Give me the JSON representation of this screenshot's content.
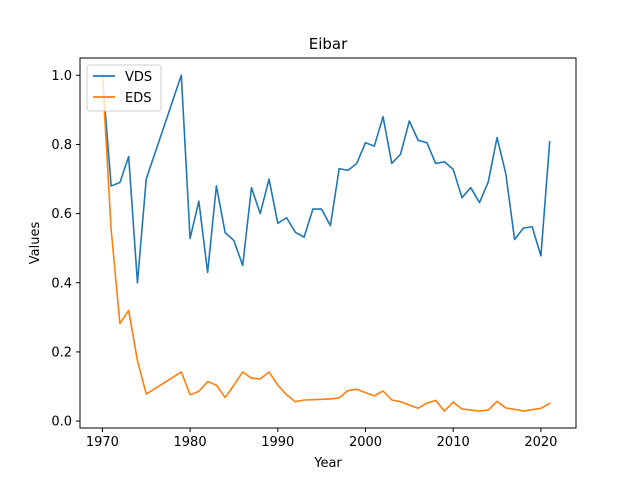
{
  "chart_data": {
    "type": "line",
    "title": "Eibar",
    "xlabel": "Year",
    "ylabel": "Values",
    "xlim": [
      1967.45,
      2024.0
    ],
    "ylim": [
      -0.02,
      1.05
    ],
    "xticks": [
      1970,
      1980,
      1990,
      2000,
      2010,
      2020
    ],
    "yticks": [
      0.0,
      0.2,
      0.4,
      0.6,
      0.8,
      1.0
    ],
    "grid": false,
    "legend_position": "top-left",
    "series": [
      {
        "name": "VDS",
        "color": "#1f77b4",
        "x": [
          1970,
          1971,
          1972,
          1973,
          1974,
          1975,
          1979,
          1980,
          1981,
          1982,
          1983,
          1984,
          1985,
          1986,
          1987,
          1988,
          1989,
          1990,
          1991,
          1992,
          1993,
          1994,
          1995,
          1996,
          1997,
          1998,
          1999,
          2000,
          2001,
          2002,
          2003,
          2004,
          2005,
          2006,
          2007,
          2008,
          2009,
          2010,
          2011,
          2012,
          2013,
          2014,
          2015,
          2016,
          2017,
          2018,
          2019,
          2020,
          2021
        ],
        "values": [
          1.0,
          0.68,
          0.69,
          0.765,
          0.4,
          0.7,
          1.0,
          0.528,
          0.636,
          0.43,
          0.68,
          0.545,
          0.522,
          0.45,
          0.675,
          0.6,
          0.7,
          0.572,
          0.588,
          0.546,
          0.532,
          0.613,
          0.613,
          0.565,
          0.73,
          0.725,
          0.745,
          0.805,
          0.795,
          0.88,
          0.745,
          0.772,
          0.868,
          0.812,
          0.805,
          0.745,
          0.75,
          0.728,
          0.646,
          0.675,
          0.632,
          0.692,
          0.82,
          0.715,
          0.525,
          0.558,
          0.562,
          0.478,
          0.808
        ]
      },
      {
        "name": "EDS",
        "color": "#ff7f0e",
        "x": [
          1970,
          1971,
          1972,
          1973,
          1974,
          1975,
          1979,
          1980,
          1981,
          1982,
          1983,
          1984,
          1985,
          1986,
          1987,
          1988,
          1989,
          1990,
          1991,
          1992,
          1993,
          1994,
          1995,
          1996,
          1997,
          1998,
          1999,
          2000,
          2001,
          2002,
          2003,
          2004,
          2005,
          2006,
          2007,
          2008,
          2009,
          2010,
          2011,
          2012,
          2013,
          2014,
          2015,
          2016,
          2017,
          2018,
          2019,
          2020,
          2021
        ],
        "values": [
          1.0,
          0.555,
          0.282,
          0.32,
          0.175,
          0.078,
          0.142,
          0.076,
          0.086,
          0.114,
          0.104,
          0.068,
          0.104,
          0.142,
          0.124,
          0.122,
          0.142,
          0.104,
          0.076,
          0.056,
          0.061,
          0.062,
          0.063,
          0.064,
          0.067,
          0.088,
          0.092,
          0.082,
          0.073,
          0.087,
          0.061,
          0.056,
          0.046,
          0.037,
          0.052,
          0.06,
          0.029,
          0.055,
          0.035,
          0.032,
          0.029,
          0.032,
          0.057,
          0.038,
          0.034,
          0.029,
          0.033,
          0.037,
          0.051
        ]
      }
    ]
  }
}
